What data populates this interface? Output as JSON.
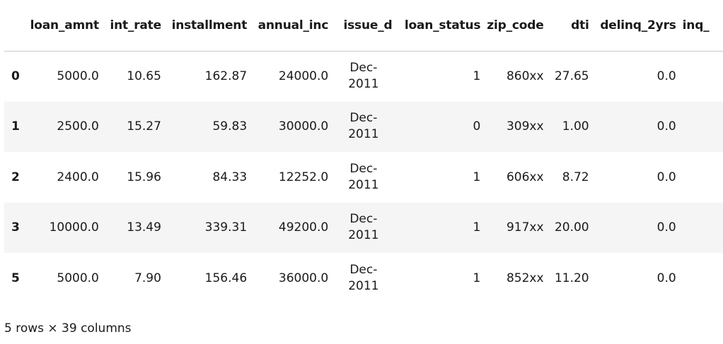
{
  "table": {
    "index_header": "",
    "columns": [
      "loan_amnt",
      "int_rate",
      "installment",
      "annual_inc",
      "issue_d",
      "loan_status",
      "zip_code",
      "dti",
      "delinq_2yrs",
      "inq_"
    ],
    "rows": [
      {
        "index": "0",
        "loan_amnt": "5000.0",
        "int_rate": "10.65",
        "installment": "162.87",
        "annual_inc": "24000.0",
        "issue_d_line1": "Dec-",
        "issue_d_line2": "2011",
        "loan_status": "1",
        "zip_code": "860xx",
        "dti": "27.65",
        "delinq_2yrs": "0.0"
      },
      {
        "index": "1",
        "loan_amnt": "2500.0",
        "int_rate": "15.27",
        "installment": "59.83",
        "annual_inc": "30000.0",
        "issue_d_line1": "Dec-",
        "issue_d_line2": "2011",
        "loan_status": "0",
        "zip_code": "309xx",
        "dti": "1.00",
        "delinq_2yrs": "0.0"
      },
      {
        "index": "2",
        "loan_amnt": "2400.0",
        "int_rate": "15.96",
        "installment": "84.33",
        "annual_inc": "12252.0",
        "issue_d_line1": "Dec-",
        "issue_d_line2": "2011",
        "loan_status": "1",
        "zip_code": "606xx",
        "dti": "8.72",
        "delinq_2yrs": "0.0"
      },
      {
        "index": "3",
        "loan_amnt": "10000.0",
        "int_rate": "13.49",
        "installment": "339.31",
        "annual_inc": "49200.0",
        "issue_d_line1": "Dec-",
        "issue_d_line2": "2011",
        "loan_status": "1",
        "zip_code": "917xx",
        "dti": "20.00",
        "delinq_2yrs": "0.0"
      },
      {
        "index": "5",
        "loan_amnt": "5000.0",
        "int_rate": "7.90",
        "installment": "156.46",
        "annual_inc": "36000.0",
        "issue_d_line1": "Dec-",
        "issue_d_line2": "2011",
        "loan_status": "1",
        "zip_code": "852xx",
        "dti": "11.20",
        "delinq_2yrs": "0.0"
      }
    ]
  },
  "shape_note": "5 rows × 39 columns"
}
